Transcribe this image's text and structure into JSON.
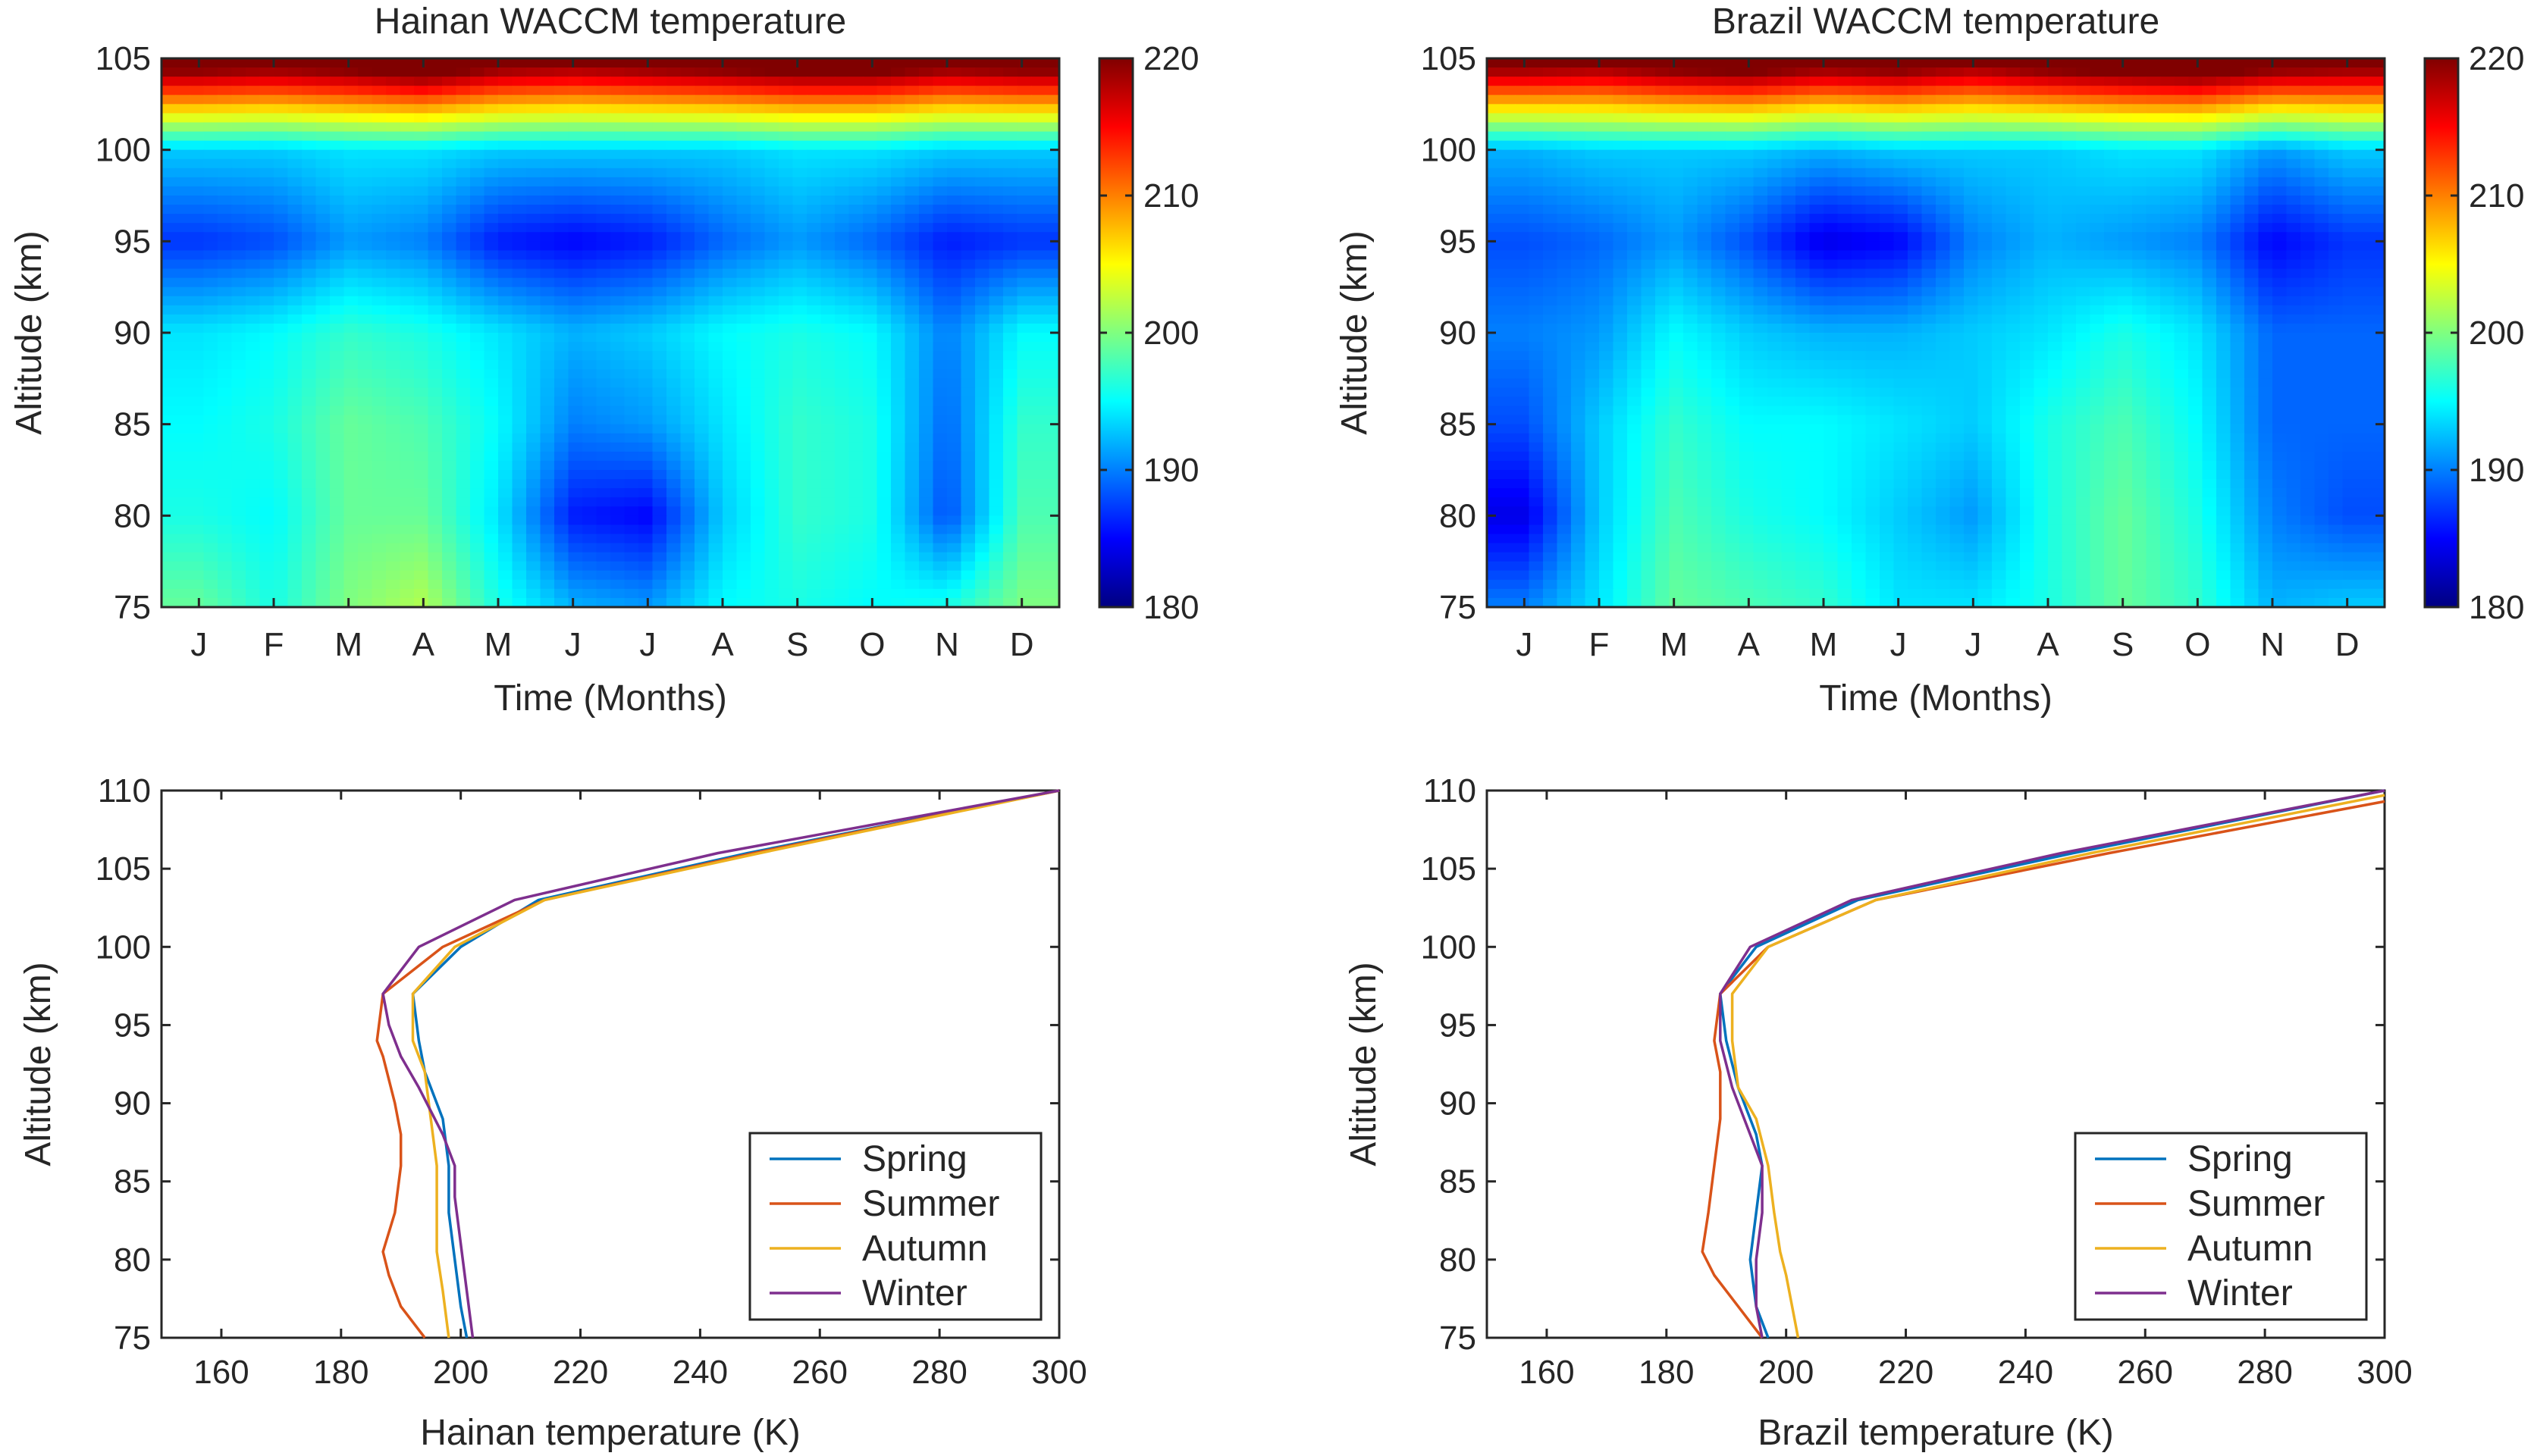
{
  "chart_data": [
    {
      "id": "hainan-contour",
      "type": "heatmap",
      "title": "Hainan WACCM temperature",
      "xlabel": "Time (Months)",
      "ylabel": "Altitude (km)",
      "x_categories": [
        "J",
        "F",
        "M",
        "A",
        "M",
        "J",
        "J",
        "A",
        "S",
        "O",
        "N",
        "D"
      ],
      "y": [
        75,
        80,
        85,
        90,
        95,
        100,
        105
      ],
      "yticks": [
        75,
        80,
        85,
        90,
        95,
        100,
        105
      ],
      "ylim": [
        75,
        105
      ],
      "colorbar": {
        "min": 180,
        "max": 220,
        "ticks": [
          180,
          190,
          200,
          210,
          220
        ]
      },
      "z": [
        [
          199,
          196,
          200,
          202,
          196,
          192,
          191,
          195,
          196,
          195,
          196,
          200
        ],
        [
          196,
          195,
          199,
          199,
          194,
          186,
          185,
          193,
          197,
          196,
          188,
          198
        ],
        [
          195,
          196,
          199,
          198,
          195,
          190,
          191,
          194,
          197,
          196,
          189,
          197
        ],
        [
          194,
          195,
          197,
          196,
          194,
          192,
          193,
          195,
          196,
          195,
          190,
          195
        ],
        [
          187,
          188,
          191,
          190,
          186,
          185,
          186,
          189,
          191,
          189,
          186,
          187
        ],
        [
          193,
          193,
          194,
          194,
          193,
          193,
          193,
          193,
          194,
          194,
          193,
          193
        ],
        [
          224,
          223,
          224,
          226,
          223,
          222,
          223,
          224,
          225,
          225,
          223,
          224
        ]
      ]
    },
    {
      "id": "brazil-contour",
      "type": "heatmap",
      "title": "Brazil WACCM temperature",
      "xlabel": "Time (Months)",
      "ylabel": "Altitude (km)",
      "x_categories": [
        "J",
        "F",
        "M",
        "A",
        "M",
        "J",
        "J",
        "A",
        "S",
        "O",
        "N",
        "D"
      ],
      "y": [
        75,
        80,
        85,
        90,
        95,
        100,
        105
      ],
      "yticks": [
        75,
        80,
        85,
        90,
        95,
        100,
        105
      ],
      "ylim": [
        75,
        105
      ],
      "colorbar": {
        "min": 180,
        "max": 220,
        "ticks": [
          180,
          190,
          200,
          210,
          220
        ]
      },
      "z": [
        [
          190,
          194,
          199,
          198,
          197,
          194,
          194,
          196,
          199,
          197,
          192,
          193
        ],
        [
          184,
          193,
          198,
          196,
          195,
          193,
          191,
          196,
          199,
          196,
          190,
          188
        ],
        [
          188,
          193,
          197,
          195,
          195,
          194,
          193,
          196,
          198,
          195,
          189,
          189
        ],
        [
          190,
          191,
          195,
          193,
          192,
          192,
          193,
          194,
          196,
          194,
          189,
          189
        ],
        [
          188,
          189,
          191,
          188,
          184,
          185,
          190,
          192,
          191,
          190,
          185,
          187
        ],
        [
          192,
          193,
          193,
          193,
          192,
          193,
          193,
          193,
          194,
          194,
          191,
          193
        ],
        [
          223,
          222,
          224,
          225,
          223,
          224,
          222,
          224,
          225,
          226,
          224,
          223
        ]
      ]
    },
    {
      "id": "hainan-profile",
      "type": "line",
      "xlabel": "Hainan temperature (K)",
      "ylabel": "Altitude (km)",
      "xlim": [
        150,
        300
      ],
      "ylim": [
        75,
        110
      ],
      "xticks": [
        160,
        180,
        200,
        220,
        240,
        260,
        280,
        300
      ],
      "yticks": [
        75,
        80,
        85,
        90,
        95,
        100,
        105,
        110
      ],
      "legend": "bottom-right",
      "series": [
        {
          "name": "Spring",
          "color": "#0072BD",
          "points": [
            [
              201,
              75
            ],
            [
              200,
              77
            ],
            [
              199,
              80
            ],
            [
              198,
              83
            ],
            [
              198,
              86
            ],
            [
              197,
              89
            ],
            [
              194,
              92
            ],
            [
              193,
              94
            ],
            [
              192,
              97
            ],
            [
              200,
              100
            ],
            [
              213,
              103
            ],
            [
              248,
              106
            ],
            [
              300,
              110
            ]
          ]
        },
        {
          "name": "Summer",
          "color": "#D95319",
          "points": [
            [
              194,
              75
            ],
            [
              190,
              77
            ],
            [
              188,
              79
            ],
            [
              187,
              80.5
            ],
            [
              189,
              83
            ],
            [
              190,
              86
            ],
            [
              190,
              88
            ],
            [
              189,
              90
            ],
            [
              187,
              93
            ],
            [
              186,
              94
            ],
            [
              187,
              97
            ],
            [
              197,
              100
            ],
            [
              214,
              103
            ],
            [
              249,
              106
            ],
            [
              300,
              110
            ]
          ]
        },
        {
          "name": "Autumn",
          "color": "#EDB120",
          "points": [
            [
              198,
              75
            ],
            [
              197,
              78
            ],
            [
              196,
              80.5
            ],
            [
              196,
              83
            ],
            [
              196,
              86
            ],
            [
              195,
              89
            ],
            [
              194,
              92
            ],
            [
              192,
              94
            ],
            [
              192,
              97
            ],
            [
              199,
              100
            ],
            [
              214,
              103
            ],
            [
              250,
              106
            ],
            [
              300,
              110
            ]
          ]
        },
        {
          "name": "Winter",
          "color": "#7E2F8E",
          "points": [
            [
              202,
              75
            ],
            [
              201,
              78
            ],
            [
              200,
              81
            ],
            [
              199,
              84
            ],
            [
              199,
              86
            ],
            [
              197,
              88
            ],
            [
              193,
              91
            ],
            [
              190,
              93
            ],
            [
              188,
              95
            ],
            [
              187,
              97
            ],
            [
              193,
              100
            ],
            [
              209,
              103
            ],
            [
              243,
              106
            ],
            [
              300,
              110
            ]
          ]
        }
      ]
    },
    {
      "id": "brazil-profile",
      "type": "line",
      "xlabel": "Brazil temperature (K)",
      "ylabel": "Altitude (km)",
      "xlim": [
        150,
        300
      ],
      "ylim": [
        75,
        110
      ],
      "xticks": [
        160,
        180,
        200,
        220,
        240,
        260,
        280,
        300
      ],
      "yticks": [
        75,
        80,
        85,
        90,
        95,
        100,
        105,
        110
      ],
      "legend": "bottom-right",
      "series": [
        {
          "name": "Spring",
          "color": "#0072BD",
          "points": [
            [
              197,
              75
            ],
            [
              195,
              77
            ],
            [
              194,
              80
            ],
            [
              195,
              83
            ],
            [
              196,
              86
            ],
            [
              195,
              88
            ],
            [
              192,
              91
            ],
            [
              190,
              94
            ],
            [
              189,
              97
            ],
            [
              195,
              100
            ],
            [
              212,
              103
            ],
            [
              248,
              106
            ],
            [
              300,
              110
            ]
          ]
        },
        {
          "name": "Summer",
          "color": "#D95319",
          "points": [
            [
              196,
              75
            ],
            [
              192,
              77
            ],
            [
              188,
              79
            ],
            [
              186,
              80.5
            ],
            [
              187,
              83
            ],
            [
              188,
              86
            ],
            [
              189,
              89
            ],
            [
              189,
              92
            ],
            [
              188,
              94
            ],
            [
              189,
              97
            ],
            [
              197,
              100
            ],
            [
              215,
              103
            ],
            [
              254,
              106
            ],
            [
              300,
              109.3
            ]
          ]
        },
        {
          "name": "Autumn",
          "color": "#EDB120",
          "points": [
            [
              202,
              75
            ],
            [
              201,
              77
            ],
            [
              200,
              79
            ],
            [
              199,
              80.5
            ],
            [
              198,
              83
            ],
            [
              197,
              86
            ],
            [
              195,
              89
            ],
            [
              192,
              91
            ],
            [
              191,
              94
            ],
            [
              191,
              97
            ],
            [
              197,
              100
            ],
            [
              215,
              103
            ],
            [
              251,
              106
            ],
            [
              300,
              109.7
            ]
          ]
        },
        {
          "name": "Winter",
          "color": "#7E2F8E",
          "points": [
            [
              196,
              75
            ],
            [
              195,
              77
            ],
            [
              195,
              80
            ],
            [
              196,
              83
            ],
            [
              196,
              86
            ],
            [
              194,
              88
            ],
            [
              191,
              91
            ],
            [
              189,
              94
            ],
            [
              189,
              97
            ],
            [
              194,
              100
            ],
            [
              211,
              103
            ],
            [
              246,
              106
            ],
            [
              300,
              110
            ]
          ]
        }
      ]
    }
  ]
}
